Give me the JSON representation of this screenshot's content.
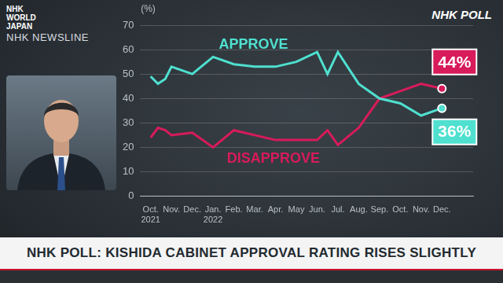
{
  "header": {
    "logo": "NHK WORLD JAPAN",
    "program": "NHK NEWSLINE",
    "corner": "NHK POLL"
  },
  "caption": "NHK POLL: KISHIDA CABINET APPROVAL RATING RISES SLIGHTLY",
  "chart_data": {
    "type": "line",
    "y_label": "(%)",
    "x": [
      0,
      0.35,
      0.7,
      1,
      2,
      3,
      4,
      5,
      6,
      7,
      8,
      8.5,
      9,
      10,
      11,
      12,
      13,
      14
    ],
    "series": [
      {
        "name": "APPROVE",
        "color": "#4fe0cf",
        "values": [
          49,
          46,
          48,
          53,
          50,
          57,
          54,
          53,
          53,
          55,
          59,
          50,
          59,
          46,
          40,
          38,
          33,
          36
        ],
        "value_labels": [
          null,
          null,
          null,
          null,
          null,
          null,
          null,
          null,
          null,
          null,
          null,
          null,
          null,
          null,
          null,
          null,
          null,
          "36%"
        ]
      },
      {
        "name": "DISAPPROVE",
        "color": "#d81b5a",
        "values": [
          24,
          28,
          27,
          25,
          26,
          20,
          27,
          25,
          23,
          23,
          23,
          27,
          21,
          28,
          40,
          43,
          46,
          44
        ],
        "value_labels": [
          null,
          null,
          null,
          null,
          null,
          null,
          null,
          null,
          null,
          null,
          null,
          null,
          null,
          null,
          null,
          null,
          null,
          "44%"
        ]
      }
    ],
    "xlim": [
      -0.5,
      15.5
    ],
    "xticks": [
      {
        "value": 0,
        "label": "Oct. 2021"
      },
      {
        "value": 1,
        "label": "Nov."
      },
      {
        "value": 2,
        "label": "Dec."
      },
      {
        "value": 3,
        "label": "Jan. 2022"
      },
      {
        "value": 4,
        "label": "Feb."
      },
      {
        "value": 5,
        "label": "Mar."
      },
      {
        "value": 6,
        "label": "Apr."
      },
      {
        "value": 7,
        "label": "May"
      },
      {
        "value": 8,
        "label": "Jun."
      },
      {
        "value": 9,
        "label": "Jul."
      },
      {
        "value": 10,
        "label": "Aug."
      },
      {
        "value": 11,
        "label": "Sep."
      },
      {
        "value": 12,
        "label": "Oct."
      },
      {
        "value": 13,
        "label": "Nov."
      },
      {
        "value": 14,
        "label": "Dec."
      }
    ],
    "ylim": [
      0,
      70
    ],
    "yticks": [
      0,
      10,
      20,
      30,
      40,
      50,
      60,
      70
    ],
    "grid": true
  }
}
